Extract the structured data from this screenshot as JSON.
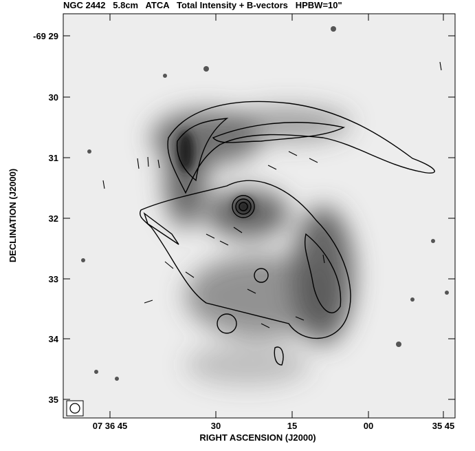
{
  "header": {
    "title": "NGC 2442   5.8cm   ATCA   Total Intensity + B-vectors   HPBW=10\""
  },
  "axes": {
    "x": {
      "label": "RIGHT ASCENSION (J2000)",
      "ticks": [
        "07 36 45",
        "30",
        "15",
        "00",
        "35 45"
      ]
    },
    "y": {
      "label": "DECLINATION (J2000)",
      "ticks": [
        "-69 29",
        "30",
        "31",
        "32",
        "33",
        "34",
        "35"
      ]
    }
  }
}
